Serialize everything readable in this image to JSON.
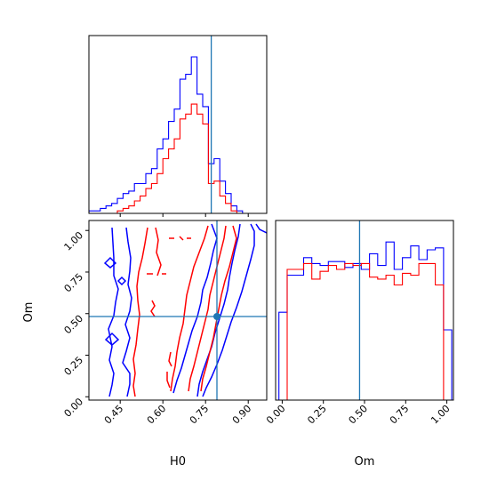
{
  "chart_data": {
    "type": "corner",
    "parameters": [
      "H0",
      "Om"
    ],
    "truth": {
      "H0": 0.77,
      "Om": 0.47
    },
    "truth_color": "#1f77b4",
    "series": [
      {
        "color": "#0000ff"
      },
      {
        "color": "#ff0000"
      }
    ],
    "panels": {
      "hist_H0": {
        "type": "histogram",
        "xlim": [
          0.34,
          0.965
        ],
        "bins": [
          0.34,
          0.36,
          0.38,
          0.4,
          0.42,
          0.44,
          0.46,
          0.48,
          0.5,
          0.52,
          0.54,
          0.56,
          0.58,
          0.6,
          0.62,
          0.64,
          0.66,
          0.68,
          0.7,
          0.72,
          0.74,
          0.76,
          0.78,
          0.8,
          0.82,
          0.84,
          0.86,
          0.88,
          0.9,
          0.92,
          0.94
        ],
        "counts": [
          [
            1,
            1,
            2,
            3,
            4,
            6,
            8,
            9,
            12,
            12,
            16,
            18,
            26,
            30,
            37,
            42,
            54,
            56,
            63,
            48,
            43,
            20,
            22,
            13,
            8,
            3,
            1,
            0,
            0,
            0
          ],
          [
            0,
            0,
            0,
            0,
            0,
            1,
            2,
            3,
            5,
            7,
            10,
            12,
            16,
            22,
            26,
            30,
            38,
            40,
            44,
            40,
            36,
            12,
            13,
            7,
            4,
            1,
            0,
            0,
            0,
            0
          ]
        ]
      },
      "hist_Om": {
        "type": "histogram",
        "xlim": [
          -0.04,
          1.04
        ],
        "bins": [
          -0.02,
          0.03,
          0.08,
          0.13,
          0.18,
          0.23,
          0.28,
          0.33,
          0.38,
          0.43,
          0.48,
          0.53,
          0.58,
          0.63,
          0.68,
          0.73,
          0.78,
          0.83,
          0.88,
          0.93,
          0.98,
          1.03
        ],
        "counts": [
          [
            45,
            64,
            64,
            73,
            70,
            69,
            71,
            71,
            68,
            70,
            67,
            75,
            69,
            81,
            67,
            73,
            79,
            72,
            77,
            78,
            36
          ],
          [
            0,
            67,
            67,
            70,
            62,
            66,
            69,
            67,
            70,
            69,
            70,
            63,
            62,
            64,
            59,
            65,
            64,
            70,
            70,
            59,
            0
          ]
        ]
      },
      "joint": {
        "type": "contour",
        "xlabel": "H0",
        "ylabel": "Om",
        "xlim": [
          0.34,
          0.965
        ],
        "ylim": [
          -0.02,
          1.06
        ],
        "xticks": [
          "0.45",
          "0.60",
          "0.75",
          "0.90"
        ],
        "yticks": [
          "0.00",
          "0.25",
          "0.50",
          "0.75",
          "1.00"
        ],
        "om_ticks": [
          "0.00",
          "0.25",
          "0.50",
          "0.75",
          "1.00"
        ],
        "om_label": "Om"
      }
    }
  }
}
